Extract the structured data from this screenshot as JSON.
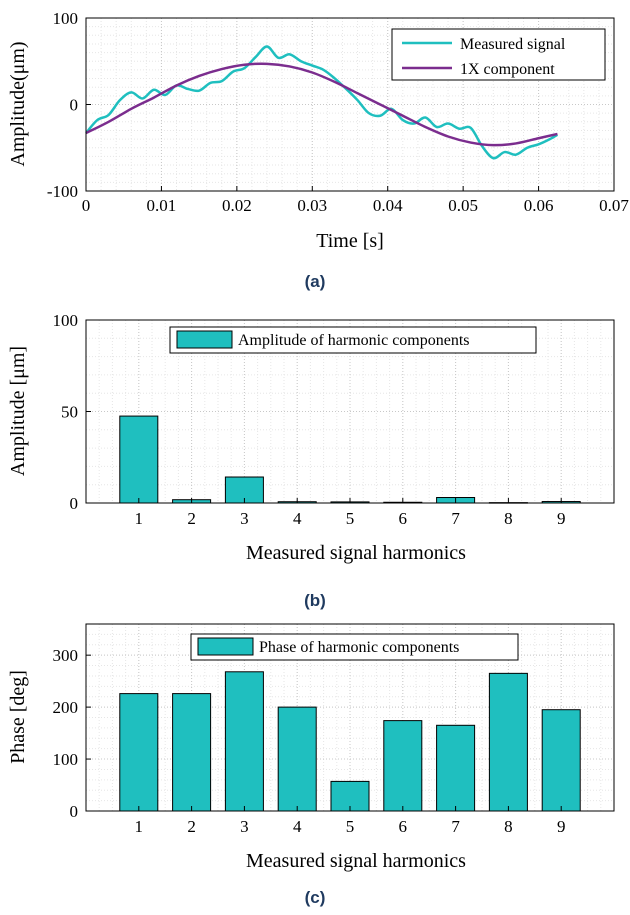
{
  "chart_data": [
    {
      "type": "line",
      "caption": "(a)",
      "xlabel": "Time [s]",
      "ylabel": "Amplitude(μm)",
      "xlim": [
        0,
        0.07
      ],
      "ylim": [
        -100,
        100
      ],
      "xticks": [
        "0",
        "0.01",
        "0.02",
        "0.03",
        "0.04",
        "0.05",
        "0.06",
        "0.07"
      ],
      "yticks": [
        "-100",
        "0",
        "100"
      ],
      "grid": true,
      "legend_position": "top-right",
      "series": [
        {
          "name": "Measured signal",
          "color": "#1fbfbf",
          "x": [
            0,
            0.0015,
            0.003,
            0.0045,
            0.006,
            0.0075,
            0.009,
            0.0105,
            0.012,
            0.0135,
            0.015,
            0.0165,
            0.018,
            0.0195,
            0.021,
            0.0225,
            0.024,
            0.0255,
            0.027,
            0.0285,
            0.03,
            0.0315,
            0.033,
            0.0345,
            0.036,
            0.0375,
            0.039,
            0.0405,
            0.042,
            0.0435,
            0.045,
            0.0465,
            0.048,
            0.0495,
            0.051,
            0.0525,
            0.054,
            0.0555,
            0.057,
            0.0585,
            0.06,
            0.0615,
            0.0625
          ],
          "y": [
            -33,
            -18,
            -12,
            5,
            14,
            7,
            17,
            11,
            22,
            18,
            16,
            25,
            27,
            38,
            42,
            55,
            67,
            54,
            58,
            50,
            45,
            40,
            30,
            18,
            5,
            -10,
            -13,
            -5,
            -18,
            -22,
            -15,
            -26,
            -22,
            -28,
            -27,
            -48,
            -62,
            -55,
            -58,
            -50,
            -46,
            -40,
            -35
          ]
        },
        {
          "name": "1X component",
          "color": "#7b2d8e",
          "x": [
            0,
            0.003,
            0.006,
            0.009,
            0.012,
            0.015,
            0.018,
            0.021,
            0.024,
            0.027,
            0.03,
            0.033,
            0.036,
            0.039,
            0.042,
            0.045,
            0.048,
            0.051,
            0.054,
            0.057,
            0.06,
            0.0625
          ],
          "y": [
            -33,
            -20,
            -5,
            8,
            22,
            33,
            41,
            46,
            47,
            44,
            37,
            26,
            13,
            0,
            -13,
            -26,
            -37,
            -44,
            -47,
            -45,
            -39,
            -34
          ]
        }
      ]
    },
    {
      "type": "bar",
      "caption": "(b)",
      "xlabel": "Measured signal harmonics",
      "ylabel": "Amplitude [μm]",
      "ylim": [
        0,
        100
      ],
      "categories": [
        "1",
        "2",
        "3",
        "4",
        "5",
        "6",
        "7",
        "8",
        "9"
      ],
      "yticks": [
        "0",
        "50",
        "100"
      ],
      "grid": true,
      "legend_position": "top-center",
      "series": [
        {
          "name": "Amplitude of harmonic components",
          "color": "#1fbfbf",
          "values": [
            47.5,
            1.8,
            14.2,
            0.7,
            0.6,
            0.4,
            3.0,
            0.2,
            0.8
          ]
        }
      ]
    },
    {
      "type": "bar",
      "caption": "(c)",
      "xlabel": "Measured signal harmonics",
      "ylabel": "Phase [deg]",
      "ylim": [
        0,
        360
      ],
      "categories": [
        "1",
        "2",
        "3",
        "4",
        "5",
        "6",
        "7",
        "8",
        "9"
      ],
      "yticks": [
        "0",
        "100",
        "200",
        "300"
      ],
      "grid": true,
      "legend_position": "top-center",
      "series": [
        {
          "name": "Phase of harmonic components",
          "color": "#1fbfbf",
          "values": [
            226,
            226,
            268,
            200,
            57,
            174,
            165,
            265,
            195
          ]
        }
      ]
    }
  ]
}
